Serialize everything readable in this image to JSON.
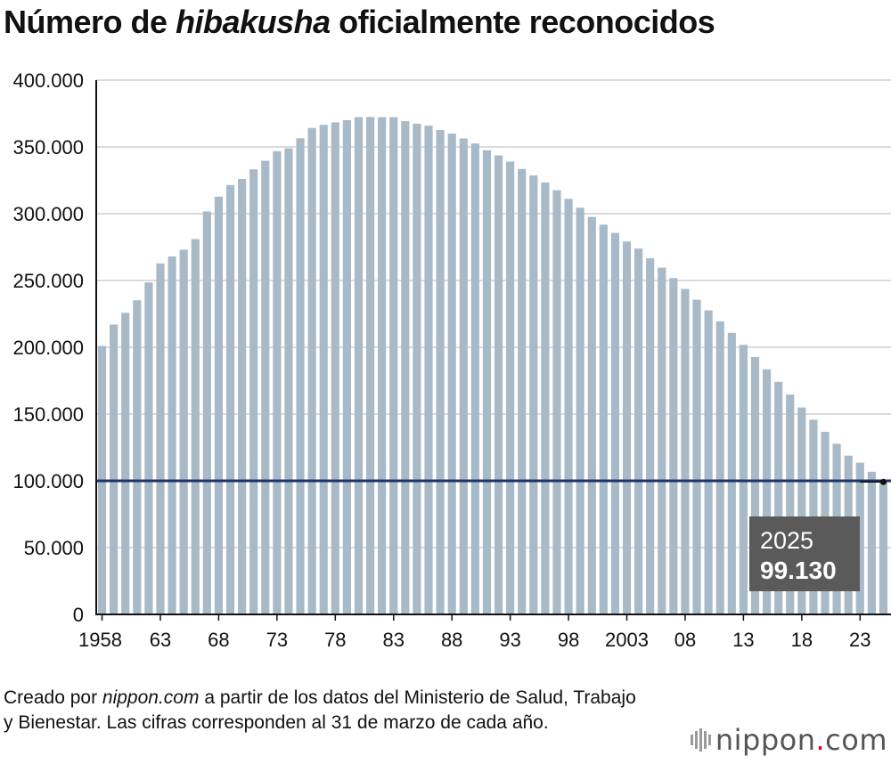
{
  "header": {
    "title_pre": "Número de",
    "title_em": "hibakusha",
    "title_post": "oficialmente reconocidos"
  },
  "chart_data": {
    "type": "bar",
    "years": [
      1958,
      1959,
      1960,
      1961,
      1962,
      1963,
      1964,
      1965,
      1966,
      1967,
      1968,
      1969,
      1970,
      1971,
      1972,
      1973,
      1974,
      1975,
      1976,
      1977,
      1978,
      1979,
      1980,
      1981,
      1982,
      1983,
      1984,
      1985,
      1986,
      1987,
      1988,
      1989,
      1990,
      1991,
      1992,
      1993,
      1994,
      1995,
      1996,
      1997,
      1998,
      1999,
      2000,
      2001,
      2002,
      2003,
      2004,
      2005,
      2006,
      2007,
      2008,
      2009,
      2010,
      2011,
      2012,
      2013,
      2014,
      2015,
      2016,
      2017,
      2018,
      2019,
      2020,
      2021,
      2022,
      2023,
      2024,
      2025
    ],
    "values": [
      200984,
      217024,
      225800,
      235200,
      248500,
      262800,
      268000,
      273000,
      281000,
      301700,
      312800,
      321500,
      326000,
      333200,
      339600,
      346800,
      349000,
      356500,
      364200,
      366500,
      368400,
      370000,
      372300,
      372400,
      372300,
      372300,
      369300,
      367400,
      365900,
      362700,
      360000,
      356300,
      352600,
      347500,
      343600,
      339000,
      333500,
      328700,
      323400,
      317600,
      311100,
      304500,
      297600,
      291800,
      285600,
      279200,
      273900,
      266600,
      259600,
      251800,
      243700,
      235600,
      227600,
      219400,
      210800,
      201800,
      192700,
      183500,
      174100,
      164600,
      154900,
      145800,
      136700,
      127800,
      118900,
      113600,
      106800,
      99130
    ],
    "xtick_labels": [
      {
        "year": 1958,
        "label": "1958"
      },
      {
        "year": 1963,
        "label": "63"
      },
      {
        "year": 1968,
        "label": "68"
      },
      {
        "year": 1973,
        "label": "73"
      },
      {
        "year": 1978,
        "label": "78"
      },
      {
        "year": 1983,
        "label": "83"
      },
      {
        "year": 1988,
        "label": "88"
      },
      {
        "year": 1993,
        "label": "93"
      },
      {
        "year": 1998,
        "label": "98"
      },
      {
        "year": 2003,
        "label": "2003"
      },
      {
        "year": 2008,
        "label": "08"
      },
      {
        "year": 2013,
        "label": "13"
      },
      {
        "year": 2018,
        "label": "18"
      },
      {
        "year": 2023,
        "label": "23"
      }
    ],
    "yticks": [
      {
        "value": 0,
        "label": "0"
      },
      {
        "value": 50000,
        "label": "50.000"
      },
      {
        "value": 100000,
        "label": "100.000"
      },
      {
        "value": 150000,
        "label": "150.000"
      },
      {
        "value": 200000,
        "label": "200.000"
      },
      {
        "value": 250000,
        "label": "250.000"
      },
      {
        "value": 300000,
        "label": "300.000"
      },
      {
        "value": 350000,
        "label": "350.000"
      },
      {
        "value": 400000,
        "label": "400.000"
      }
    ],
    "ylim": [
      0,
      400000
    ],
    "reference_line": 100000,
    "grid": true,
    "annotation": {
      "year": 2025,
      "value": 99130,
      "line1": "2025",
      "line2": "99.130"
    },
    "colors": {
      "bar": "#a8b9c7",
      "reference": "#1e3566",
      "grid": "#cfcfcf",
      "axis": "#111111",
      "annotation_bg": "#5a5a5a",
      "annotation_text": "#ffffff"
    }
  },
  "footer": {
    "source_pre": "Creado por",
    "source_em": "nippon.com",
    "source_post": "a partir de los datos del Ministerio de Salud, Trabajo y Bienestar. Las cifras corresponden al 31 de marzo de cada año.",
    "logo_main": "nippon",
    "logo_dot": ".",
    "logo_tld": "com"
  }
}
